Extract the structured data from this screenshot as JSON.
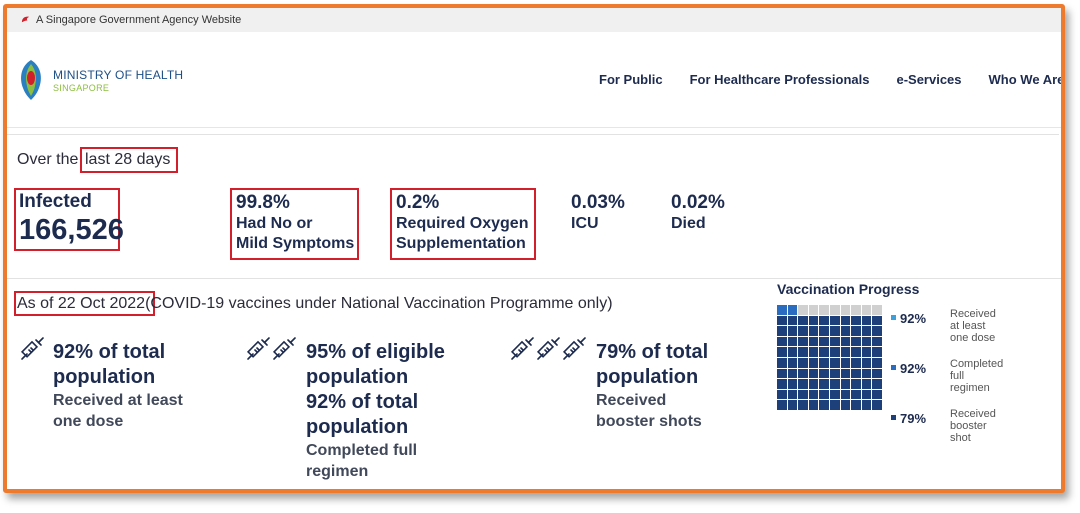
{
  "gov_bar": {
    "text": "A Singapore Government Agency Website"
  },
  "logo": {
    "line1": "MINISTRY OF HEALTH",
    "line2": "SINGAPORE"
  },
  "nav": {
    "items": [
      "For Public",
      "For Healthcare Professionals",
      "e-Services",
      "Who We Are"
    ]
  },
  "stats": {
    "title_prefix": "Over the",
    "title_highlight": "last 28 days",
    "infected_label": "Infected",
    "infected_value": "166,526",
    "items": [
      {
        "value": "99.8%",
        "line1": "Had No or",
        "line2": "Mild Symptoms"
      },
      {
        "value": "0.2%",
        "line1": "Required Oxygen",
        "line2": "Supplementation"
      },
      {
        "value": "0.03%",
        "line1": "ICU",
        "line2": ""
      },
      {
        "value": "0.02%",
        "line1": "Died",
        "line2": ""
      }
    ]
  },
  "vaccination": {
    "date_highlight": "As of 22 Oct 2022",
    "date_suffix": "(COVID-19 vaccines under National Vaccination Programme only)",
    "blocks": [
      {
        "big1": "92% of total",
        "big2": "population",
        "sm1": "Received at least",
        "sm2": "one dose"
      },
      {
        "big1": "95% of eligible",
        "big2": "population",
        "big3": "92% of total",
        "big4": "population",
        "sm1": "Completed full",
        "sm2": "regimen"
      },
      {
        "big1": "79% of total",
        "big2": "population",
        "sm1": "Received",
        "sm2": "booster shots"
      }
    ],
    "progress": {
      "title": "Vaccination Progress",
      "colors": {
        "dose": "#3ba0dc",
        "full": "#2a6cc0",
        "booster": "#1d3f7a",
        "empty": "#d0d0d0"
      },
      "legend": [
        {
          "pct": "92%",
          "l1": "Received",
          "l2": "at least",
          "l3": "one dose",
          "color": "#3ba0dc"
        },
        {
          "pct": "92%",
          "l1": "Completed",
          "l2": "full",
          "l3": "regimen",
          "color": "#2a6cc0"
        },
        {
          "pct": "79%",
          "l1": "Received",
          "l2": "booster",
          "l3": "shot",
          "color": "#1d3f7a"
        }
      ]
    }
  }
}
